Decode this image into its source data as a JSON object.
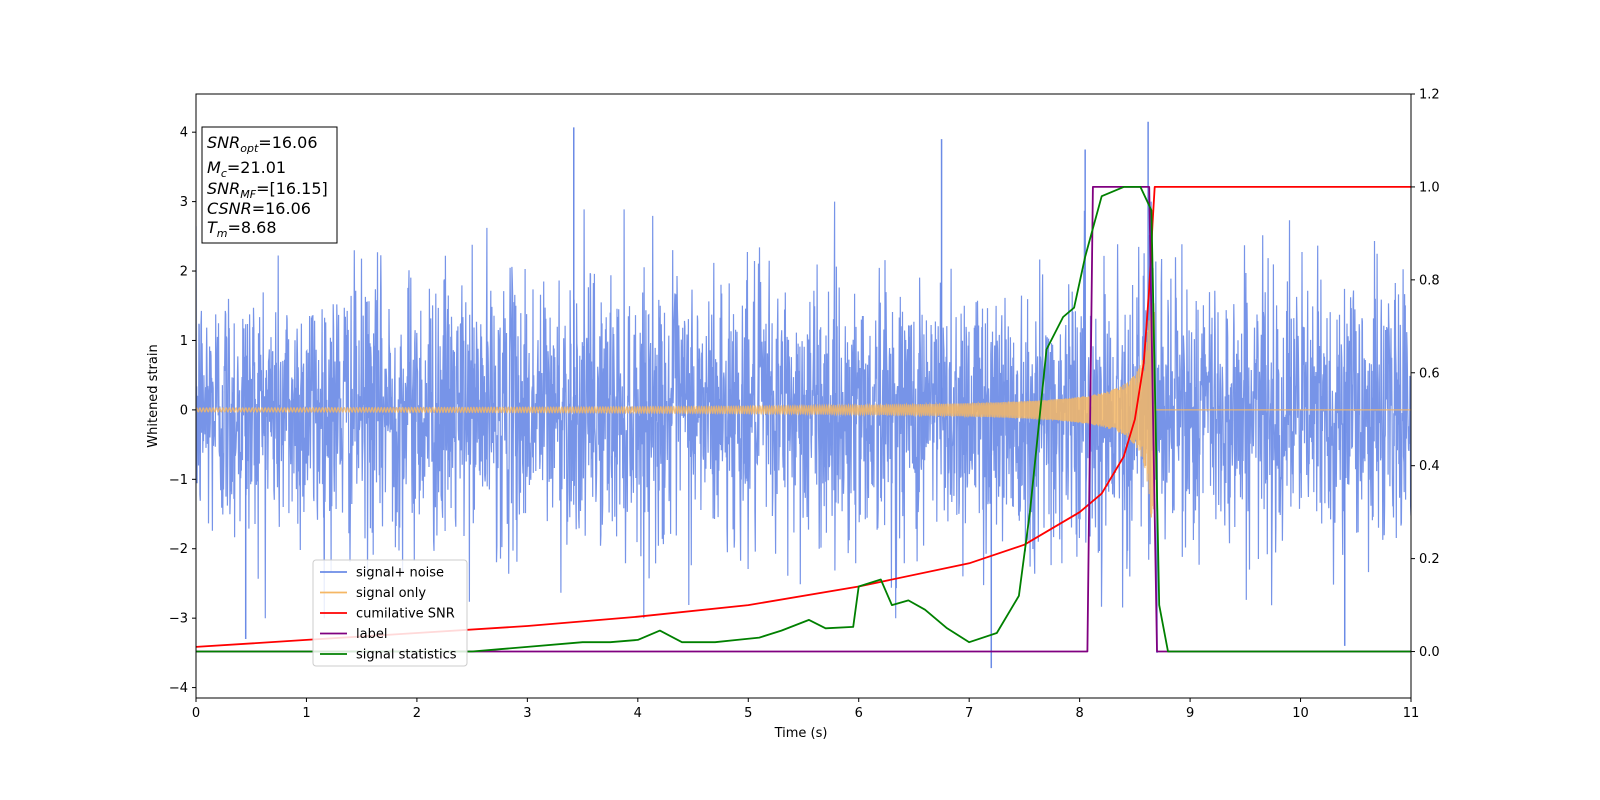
{
  "chart_data": {
    "type": "line",
    "xlabel": "Time (s)",
    "ylabel": "Whitened strain",
    "xlim": [
      0,
      11
    ],
    "ylim": [
      -4.15,
      4.55
    ],
    "y2lim": [
      -0.1,
      1.2
    ],
    "xticks": [
      0,
      1,
      2,
      3,
      4,
      5,
      6,
      7,
      8,
      9,
      10,
      11
    ],
    "xtick_labels": [
      "0",
      "1",
      "2",
      "3",
      "4",
      "5",
      "6",
      "7",
      "8",
      "9",
      "10",
      "11"
    ],
    "yticks": [
      -4,
      -3,
      -2,
      -1,
      0,
      1,
      2,
      3,
      4
    ],
    "ytick_labels": [
      "−4",
      "−3",
      "−2",
      "−1",
      "0",
      "1",
      "2",
      "3",
      "4"
    ],
    "y2ticks": [
      0.0,
      0.2,
      0.4,
      0.6,
      0.8,
      1.0,
      1.2
    ],
    "y2tick_labels": [
      "0.0",
      "0.2",
      "0.4",
      "0.6",
      "0.8",
      "1.0",
      "1.2"
    ],
    "grid": false,
    "legend_position": "lower-left",
    "colors": {
      "signal_noise": "#6b8be6",
      "signal_only": "#f5b765",
      "cumulative_snr": "#ff0000",
      "label": "#800080",
      "signal_statistics": "#008000"
    },
    "series": [
      {
        "name": "signal+ noise",
        "axis": "left",
        "description_values": "Gaussian-like whitened noise, roughly within [-2.5, 2.5] with spikes reaching about 4.1 near t=3.4 and 4.15 near t=8.6 and down to -3.7 near t=7.2",
        "spike_points": [
          [
            0.45,
            -3.3
          ],
          [
            3.42,
            4.07
          ],
          [
            6.75,
            3.9
          ],
          [
            7.2,
            -3.72
          ],
          [
            8.05,
            3.75
          ],
          [
            8.62,
            4.15
          ],
          [
            8.7,
            -3.5
          ],
          [
            10.4,
            -3.4
          ]
        ]
      },
      {
        "name": "signal only",
        "axis": "left",
        "description_values": "Chirp centered on 0, amplitude ~0.02 at t=0 growing to ~1.5 at merger time 8.68, zero afterwards",
        "merger_time": 8.68
      },
      {
        "name": "cumilative SNR",
        "axis": "right",
        "points": [
          [
            0,
            0.01
          ],
          [
            1,
            0.025
          ],
          [
            2,
            0.04
          ],
          [
            3,
            0.055
          ],
          [
            4,
            0.075
          ],
          [
            5,
            0.1
          ],
          [
            6,
            0.14
          ],
          [
            7,
            0.19
          ],
          [
            7.5,
            0.23
          ],
          [
            8,
            0.3
          ],
          [
            8.2,
            0.34
          ],
          [
            8.4,
            0.42
          ],
          [
            8.5,
            0.5
          ],
          [
            8.58,
            0.62
          ],
          [
            8.63,
            0.78
          ],
          [
            8.66,
            0.92
          ],
          [
            8.68,
            1.0
          ],
          [
            11,
            1.0
          ]
        ]
      },
      {
        "name": "label",
        "axis": "right",
        "points": [
          [
            0,
            0
          ],
          [
            8.07,
            0
          ],
          [
            8.12,
            1.0
          ],
          [
            8.63,
            1.0
          ],
          [
            8.7,
            0
          ],
          [
            11,
            0
          ]
        ]
      },
      {
        "name": "signal statistics",
        "axis": "right",
        "points": [
          [
            0,
            0
          ],
          [
            2.5,
            0.0
          ],
          [
            2.75,
            0.005
          ],
          [
            3.0,
            0.01
          ],
          [
            3.5,
            0.02
          ],
          [
            3.75,
            0.02
          ],
          [
            4.0,
            0.025
          ],
          [
            4.2,
            0.045
          ],
          [
            4.4,
            0.02
          ],
          [
            4.7,
            0.02
          ],
          [
            4.9,
            0.025
          ],
          [
            5.1,
            0.03
          ],
          [
            5.3,
            0.045
          ],
          [
            5.55,
            0.068
          ],
          [
            5.7,
            0.05
          ],
          [
            5.95,
            0.053
          ],
          [
            6.0,
            0.14
          ],
          [
            6.2,
            0.155
          ],
          [
            6.3,
            0.1
          ],
          [
            6.45,
            0.11
          ],
          [
            6.6,
            0.09
          ],
          [
            6.8,
            0.05
          ],
          [
            7.0,
            0.02
          ],
          [
            7.25,
            0.04
          ],
          [
            7.45,
            0.12
          ],
          [
            7.55,
            0.3
          ],
          [
            7.7,
            0.65
          ],
          [
            7.85,
            0.72
          ],
          [
            7.95,
            0.74
          ],
          [
            8.05,
            0.85
          ],
          [
            8.2,
            0.98
          ],
          [
            8.4,
            1.0
          ],
          [
            8.55,
            1.0
          ],
          [
            8.65,
            0.95
          ],
          [
            8.72,
            0.1
          ],
          [
            8.8,
            0.0
          ],
          [
            11,
            0.0
          ]
        ]
      }
    ],
    "legend": [
      "signal+ noise",
      "signal only",
      "cumilative SNR",
      "label",
      "signal statistics"
    ],
    "annotation_box": {
      "snr_opt": "16.06",
      "mc": "21.01",
      "snr_mf": "[16.15]",
      "csnr": "16.06",
      "tm": "8.68"
    }
  }
}
